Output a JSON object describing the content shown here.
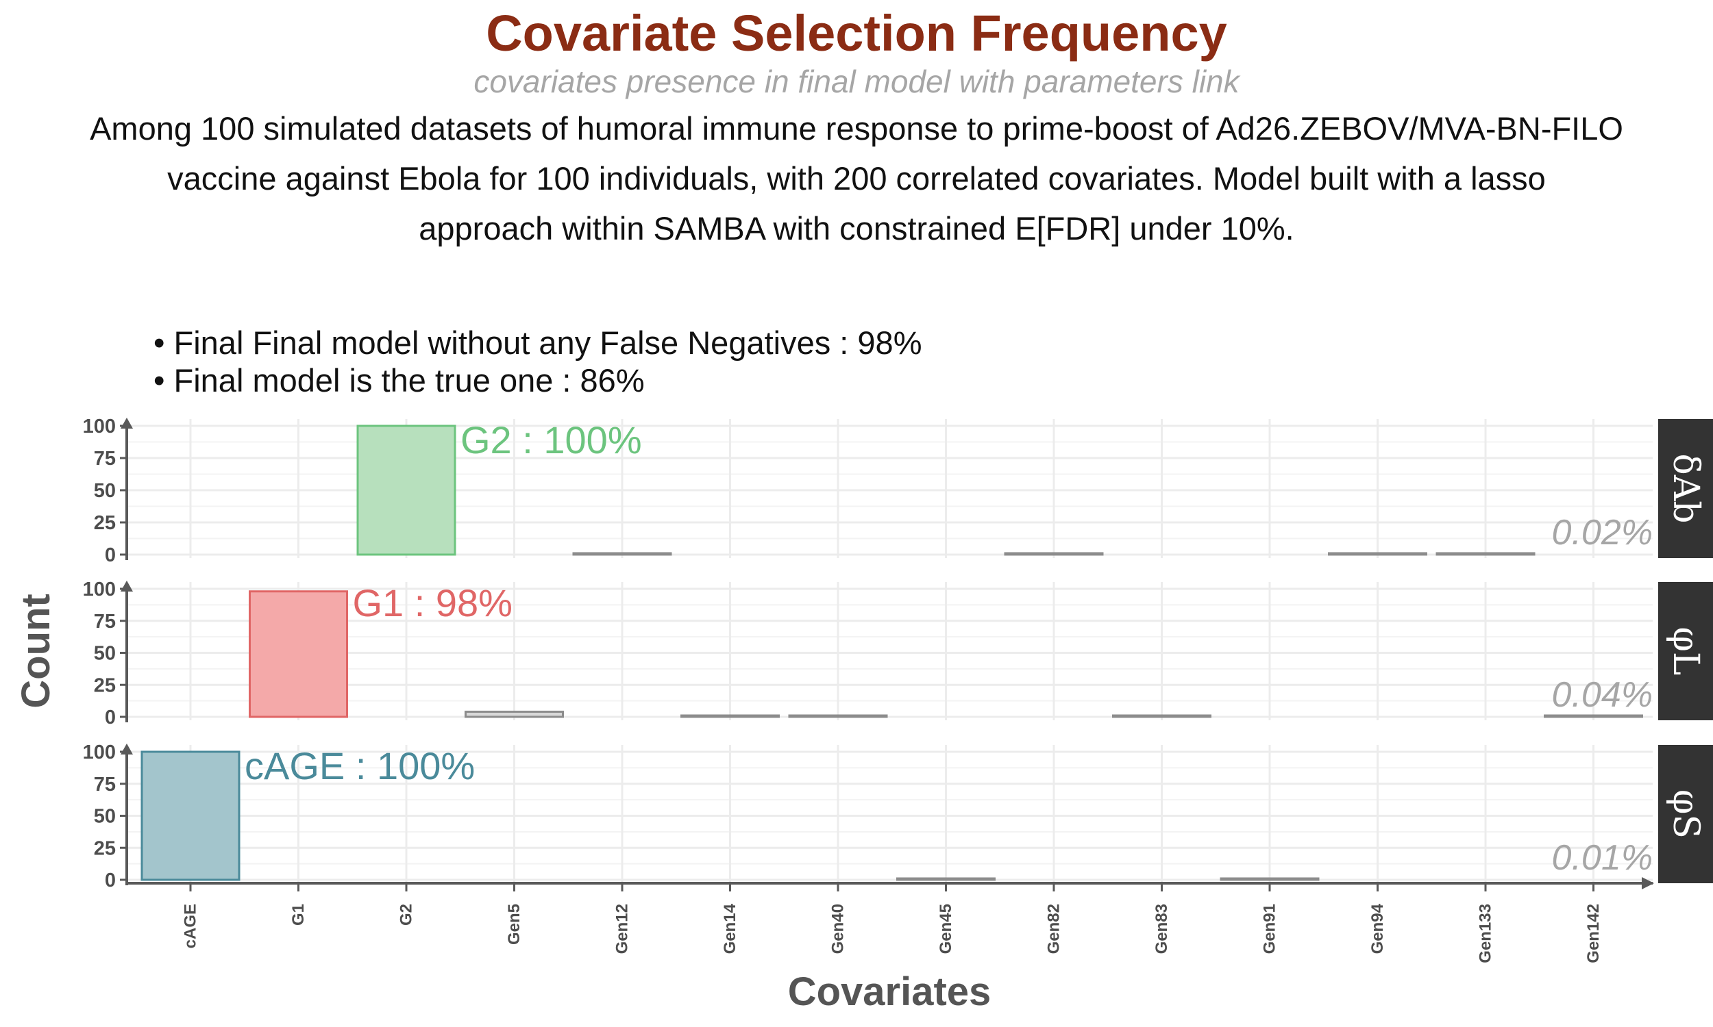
{
  "title": "Covariate Selection Frequency",
  "subtitle": "covariates presence in final model with parameters link",
  "caption": [
    "Among 100 simulated datasets of humoral immune response to prime-boost of Ad26.ZEBOV/MVA-BN-FILO",
    "vaccine against Ebola for 100 individuals, with 200 correlated covariates. Model built with a lasso",
    "approach within SAMBA with constrained E[FDR] under 10%."
  ],
  "bullets": [
    "• Final Final model without any False Negatives : 98%",
    "• Final model is the true one  : 86%"
  ],
  "chart_data": {
    "type": "bar",
    "facets": "three stacked panels sharing the x axis, strip labels on the right",
    "categories": [
      "cAGE",
      "G1",
      "G2",
      "Gen5",
      "Gen12",
      "Gen14",
      "Gen40",
      "Gen45",
      "Gen82",
      "Gen83",
      "Gen91",
      "Gen94",
      "Gen133",
      "Gen142"
    ],
    "xlabel": "Covariates",
    "ylabel": "Count",
    "ylim": [
      0,
      100
    ],
    "yticks": [
      0,
      25,
      50,
      75,
      100
    ],
    "grid": true,
    "panels": [
      {
        "strip": "δAb",
        "values": [
          0,
          0,
          100,
          0,
          1,
          0,
          0,
          0,
          1,
          0,
          0,
          1,
          1,
          0
        ],
        "highlight": {
          "category": "G2",
          "label": "G2 : 100%",
          "color": "#6cc47e",
          "fill": "#b7e0bd"
        },
        "corner_label": "0.02%"
      },
      {
        "strip": "φL",
        "values": [
          0,
          98,
          0,
          4,
          0,
          1,
          1,
          0,
          0,
          1,
          0,
          0,
          0,
          1
        ],
        "highlight": {
          "category": "G1",
          "label": "G1 : 98%",
          "color": "#e06666",
          "fill": "#f4a9a9"
        },
        "corner_label": "0.04%"
      },
      {
        "strip": "φS",
        "values": [
          100,
          0,
          0,
          0,
          0,
          0,
          0,
          1,
          0,
          0,
          1,
          0,
          0,
          0
        ],
        "highlight": {
          "category": "cAGE",
          "label": "cAGE : 100%",
          "color": "#4a8a9a",
          "fill": "#a3c5cc"
        },
        "corner_label": "0.01%"
      }
    ],
    "colors": {
      "other_bar": "#8c8c8c",
      "grid": "#ececec",
      "axis": "#595959",
      "strip_bg": "#333333",
      "strip_text": "#ffffff",
      "corner_label": "#a6a6a6"
    }
  }
}
